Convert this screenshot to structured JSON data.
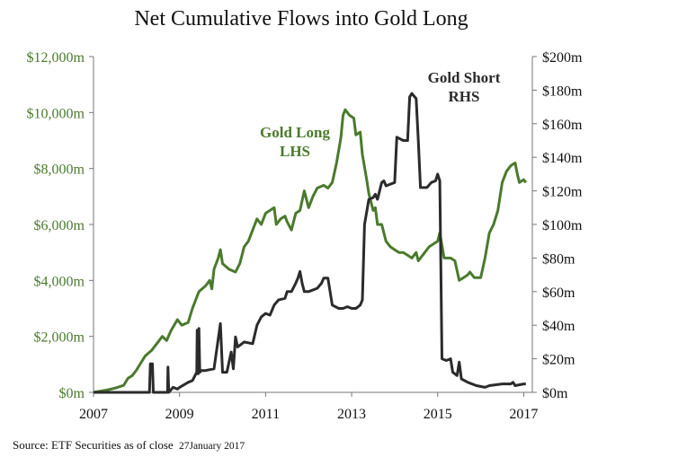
{
  "chart_data": {
    "type": "line",
    "title": "Net Cumulative Flows into Gold Long",
    "source": "Source: ETF Securities as of close",
    "source_date": "27January 2017",
    "x_ticks": [
      "2007",
      "2009",
      "2011",
      "2013",
      "2015",
      "2017"
    ],
    "xlim": [
      2007,
      2017.2
    ],
    "left_axis": {
      "ticks": [
        "$0m",
        "$2,000m",
        "$4,000m",
        "$6,000m",
        "$8,000m",
        "$10,000m",
        "$12,000m"
      ],
      "ylim": [
        0,
        12000
      ],
      "color": "#4a7a2c"
    },
    "right_axis": {
      "ticks": [
        "$0m",
        "$20m",
        "$40m",
        "$60m",
        "$80m",
        "$100m",
        "$120m",
        "$140m",
        "$160m",
        "$180m",
        "$200m"
      ],
      "ylim": [
        0,
        200
      ],
      "color": "#111111"
    },
    "series": [
      {
        "name": "Gold Long",
        "label_lines": [
          "Gold Long",
          "LHS"
        ],
        "axis": "left",
        "color": "#4a7a2c",
        "points": [
          [
            2007.0,
            0
          ],
          [
            2007.3,
            80
          ],
          [
            2007.5,
            150
          ],
          [
            2007.7,
            250
          ],
          [
            2007.8,
            500
          ],
          [
            2007.9,
            600
          ],
          [
            2008.0,
            800
          ],
          [
            2008.2,
            1300
          ],
          [
            2008.35,
            1500
          ],
          [
            2008.5,
            1800
          ],
          [
            2008.6,
            2000
          ],
          [
            2008.7,
            1850
          ],
          [
            2008.8,
            2200
          ],
          [
            2008.95,
            2600
          ],
          [
            2009.05,
            2400
          ],
          [
            2009.2,
            2500
          ],
          [
            2009.3,
            3000
          ],
          [
            2009.45,
            3600
          ],
          [
            2009.6,
            3800
          ],
          [
            2009.7,
            4000
          ],
          [
            2009.75,
            3700
          ],
          [
            2009.8,
            4400
          ],
          [
            2009.9,
            4800
          ],
          [
            2009.95,
            5100
          ],
          [
            2010.0,
            4600
          ],
          [
            2010.15,
            4400
          ],
          [
            2010.3,
            4300
          ],
          [
            2010.4,
            4600
          ],
          [
            2010.5,
            5200
          ],
          [
            2010.6,
            5400
          ],
          [
            2010.7,
            5800
          ],
          [
            2010.8,
            6200
          ],
          [
            2010.9,
            6000
          ],
          [
            2011.0,
            6400
          ],
          [
            2011.1,
            6500
          ],
          [
            2011.2,
            6600
          ],
          [
            2011.25,
            6000
          ],
          [
            2011.35,
            6200
          ],
          [
            2011.45,
            6300
          ],
          [
            2011.5,
            6100
          ],
          [
            2011.6,
            5800
          ],
          [
            2011.7,
            6400
          ],
          [
            2011.8,
            6500
          ],
          [
            2011.9,
            7200
          ],
          [
            2012.0,
            6600
          ],
          [
            2012.1,
            7000
          ],
          [
            2012.2,
            7300
          ],
          [
            2012.35,
            7400
          ],
          [
            2012.45,
            7300
          ],
          [
            2012.55,
            7500
          ],
          [
            2012.65,
            8200
          ],
          [
            2012.75,
            9100
          ],
          [
            2012.8,
            9900
          ],
          [
            2012.85,
            10100
          ],
          [
            2012.95,
            9900
          ],
          [
            2013.05,
            9800
          ],
          [
            2013.1,
            9200
          ],
          [
            2013.2,
            9300
          ],
          [
            2013.25,
            8500
          ],
          [
            2013.35,
            7600
          ],
          [
            2013.4,
            7100
          ],
          [
            2013.5,
            6500
          ],
          [
            2013.55,
            6600
          ],
          [
            2013.6,
            6000
          ],
          [
            2013.7,
            6000
          ],
          [
            2013.8,
            5400
          ],
          [
            2013.9,
            5200
          ],
          [
            2014.0,
            5100
          ],
          [
            2014.1,
            5000
          ],
          [
            2014.2,
            5000
          ],
          [
            2014.3,
            4900
          ],
          [
            2014.4,
            4800
          ],
          [
            2014.5,
            5000
          ],
          [
            2014.55,
            4700
          ],
          [
            2014.7,
            5000
          ],
          [
            2014.8,
            5200
          ],
          [
            2014.9,
            5300
          ],
          [
            2015.0,
            5400
          ],
          [
            2015.05,
            5700
          ],
          [
            2015.15,
            4800
          ],
          [
            2015.3,
            4800
          ],
          [
            2015.4,
            4700
          ],
          [
            2015.5,
            4000
          ],
          [
            2015.6,
            4100
          ],
          [
            2015.7,
            4200
          ],
          [
            2015.75,
            4300
          ],
          [
            2015.85,
            4100
          ],
          [
            2015.95,
            4100
          ],
          [
            2016.0,
            4100
          ],
          [
            2016.1,
            4800
          ],
          [
            2016.2,
            5700
          ],
          [
            2016.3,
            6000
          ],
          [
            2016.4,
            6500
          ],
          [
            2016.5,
            7500
          ],
          [
            2016.6,
            7900
          ],
          [
            2016.7,
            8100
          ],
          [
            2016.8,
            8200
          ],
          [
            2016.85,
            7800
          ],
          [
            2016.9,
            7500
          ],
          [
            2017.0,
            7600
          ],
          [
            2017.05,
            7500
          ]
        ]
      },
      {
        "name": "Gold Short",
        "label_lines": [
          "Gold Short",
          "RHS"
        ],
        "axis": "right",
        "color": "#2b2b2b",
        "points": [
          [
            2007.0,
            0
          ],
          [
            2008.3,
            0
          ],
          [
            2008.32,
            17
          ],
          [
            2008.37,
            17
          ],
          [
            2008.39,
            0
          ],
          [
            2008.72,
            0
          ],
          [
            2008.73,
            15
          ],
          [
            2008.75,
            0
          ],
          [
            2008.85,
            3
          ],
          [
            2008.95,
            2
          ],
          [
            2009.0,
            3
          ],
          [
            2009.2,
            6
          ],
          [
            2009.3,
            7
          ],
          [
            2009.4,
            12
          ],
          [
            2009.41,
            37
          ],
          [
            2009.43,
            11
          ],
          [
            2009.45,
            38
          ],
          [
            2009.47,
            12
          ],
          [
            2009.5,
            13
          ],
          [
            2009.6,
            13
          ],
          [
            2009.8,
            14
          ],
          [
            2009.95,
            41
          ],
          [
            2010.0,
            12
          ],
          [
            2010.1,
            12
          ],
          [
            2010.2,
            24
          ],
          [
            2010.25,
            14
          ],
          [
            2010.3,
            33
          ],
          [
            2010.35,
            27
          ],
          [
            2010.5,
            30
          ],
          [
            2010.7,
            29
          ],
          [
            2010.8,
            40
          ],
          [
            2010.9,
            45
          ],
          [
            2011.0,
            47
          ],
          [
            2011.1,
            46
          ],
          [
            2011.2,
            52
          ],
          [
            2011.3,
            55
          ],
          [
            2011.45,
            56
          ],
          [
            2011.5,
            60
          ],
          [
            2011.6,
            60
          ],
          [
            2011.7,
            65
          ],
          [
            2011.75,
            68
          ],
          [
            2011.8,
            72
          ],
          [
            2011.85,
            65
          ],
          [
            2011.9,
            60
          ],
          [
            2012.0,
            60
          ],
          [
            2012.2,
            62
          ],
          [
            2012.3,
            65
          ],
          [
            2012.35,
            68
          ],
          [
            2012.45,
            68
          ],
          [
            2012.55,
            52
          ],
          [
            2012.7,
            50
          ],
          [
            2012.8,
            50
          ],
          [
            2012.9,
            51
          ],
          [
            2013.0,
            50
          ],
          [
            2013.1,
            50
          ],
          [
            2013.2,
            52
          ],
          [
            2013.25,
            55
          ],
          [
            2013.3,
            100
          ],
          [
            2013.4,
            115
          ],
          [
            2013.5,
            116
          ],
          [
            2013.55,
            118
          ],
          [
            2013.6,
            115
          ],
          [
            2013.7,
            125
          ],
          [
            2013.75,
            126
          ],
          [
            2013.8,
            123
          ],
          [
            2013.9,
            124
          ],
          [
            2014.0,
            125
          ],
          [
            2014.05,
            152
          ],
          [
            2014.2,
            150
          ],
          [
            2014.3,
            150
          ],
          [
            2014.35,
            176
          ],
          [
            2014.4,
            178
          ],
          [
            2014.5,
            175
          ],
          [
            2014.55,
            150
          ],
          [
            2014.6,
            122
          ],
          [
            2014.75,
            122
          ],
          [
            2014.85,
            125
          ],
          [
            2014.95,
            126
          ],
          [
            2015.0,
            130
          ],
          [
            2015.05,
            126
          ],
          [
            2015.1,
            20
          ],
          [
            2015.2,
            19
          ],
          [
            2015.3,
            20
          ],
          [
            2015.35,
            12
          ],
          [
            2015.45,
            10
          ],
          [
            2015.5,
            18
          ],
          [
            2015.55,
            8
          ],
          [
            2015.7,
            6
          ],
          [
            2015.9,
            4
          ],
          [
            2016.1,
            3
          ],
          [
            2016.2,
            4
          ],
          [
            2016.5,
            5
          ],
          [
            2016.7,
            5
          ],
          [
            2016.75,
            6
          ],
          [
            2016.8,
            4
          ],
          [
            2017.0,
            5
          ],
          [
            2017.05,
            5
          ]
        ]
      }
    ]
  }
}
